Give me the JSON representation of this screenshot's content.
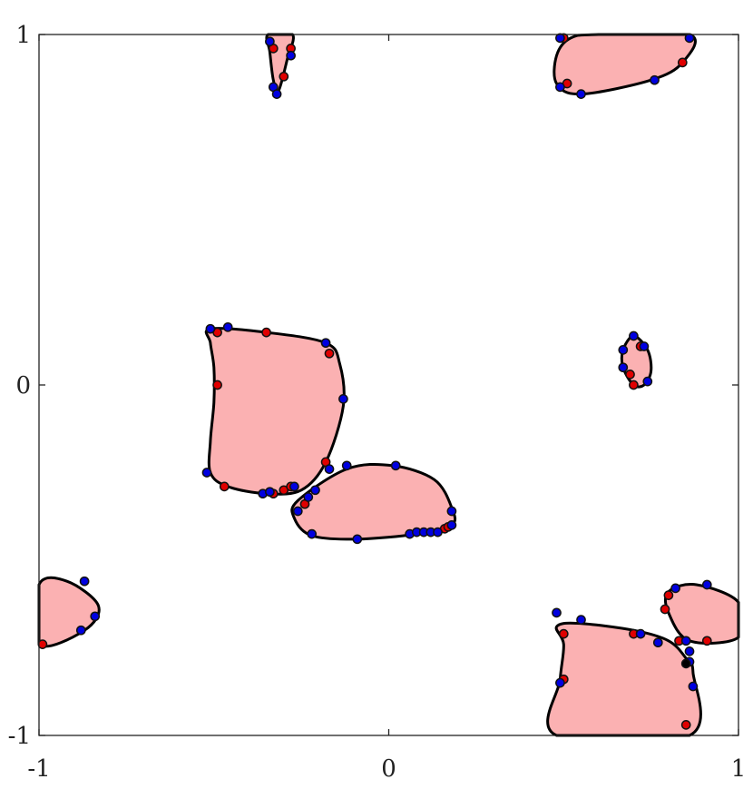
{
  "chart_data": {
    "type": "scatter",
    "title": "",
    "xlabel": "",
    "ylabel": "",
    "xlim": [
      -1,
      1
    ],
    "ylim": [
      -1,
      1
    ],
    "grid": false,
    "x_ticks": [
      -1,
      0,
      1
    ],
    "y_ticks": [
      -1,
      0,
      1
    ],
    "x_tick_labels": [
      "-1",
      "0",
      "1"
    ],
    "y_tick_labels": [
      "-1",
      "0",
      "1"
    ],
    "colors": {
      "fill": "#fbb1b2",
      "outline": "#000000",
      "red": "#e00000",
      "blue": "#0000e0"
    },
    "regions": [
      {
        "name": "top-center-small",
        "points": [
          [
            -0.345,
            1.0
          ],
          [
            -0.275,
            1.0
          ],
          [
            -0.29,
            0.93
          ],
          [
            -0.315,
            0.84
          ],
          [
            -0.33,
            0.87
          ],
          [
            -0.34,
            0.95
          ]
        ]
      },
      {
        "name": "top-right",
        "points": [
          [
            0.48,
            0.94
          ],
          [
            0.52,
            0.99
          ],
          [
            0.6,
            1.0
          ],
          [
            0.86,
            1.0
          ],
          [
            0.84,
            0.92
          ],
          [
            0.75,
            0.87
          ],
          [
            0.55,
            0.83
          ],
          [
            0.48,
            0.86
          ]
        ]
      },
      {
        "name": "center-left",
        "points": [
          [
            -0.51,
            0.16
          ],
          [
            -0.35,
            0.15
          ],
          [
            -0.18,
            0.12
          ],
          [
            -0.14,
            0.06
          ],
          [
            -0.13,
            -0.06
          ],
          [
            -0.18,
            -0.22
          ],
          [
            -0.25,
            -0.3
          ],
          [
            -0.35,
            -0.31
          ],
          [
            -0.46,
            -0.29
          ],
          [
            -0.51,
            -0.25
          ],
          [
            -0.51,
            -0.16
          ],
          [
            -0.5,
            -0.05
          ],
          [
            -0.5,
            0.05
          ],
          [
            -0.51,
            0.12
          ]
        ]
      },
      {
        "name": "center-bottom",
        "points": [
          [
            -0.26,
            -0.33
          ],
          [
            -0.12,
            -0.24
          ],
          [
            0.01,
            -0.23
          ],
          [
            0.13,
            -0.27
          ],
          [
            0.18,
            -0.35
          ],
          [
            0.18,
            -0.4
          ],
          [
            0.08,
            -0.425
          ],
          [
            -0.09,
            -0.44
          ],
          [
            -0.22,
            -0.43
          ],
          [
            -0.27,
            -0.38
          ]
        ]
      },
      {
        "name": "small-right",
        "points": [
          [
            0.67,
            0.1
          ],
          [
            0.7,
            0.14
          ],
          [
            0.74,
            0.1
          ],
          [
            0.75,
            0.04
          ],
          [
            0.73,
            0.0
          ],
          [
            0.7,
            0.0
          ],
          [
            0.67,
            0.05
          ]
        ]
      },
      {
        "name": "bottom-left",
        "points": [
          [
            -1,
            -0.57
          ],
          [
            -0.92,
            -0.56
          ],
          [
            -0.83,
            -0.63
          ],
          [
            -0.87,
            -0.7
          ],
          [
            -1,
            -0.74
          ]
        ]
      },
      {
        "name": "bottom-right-mid",
        "points": [
          [
            0.8,
            -0.59
          ],
          [
            0.88,
            -0.57
          ],
          [
            1,
            -0.62
          ],
          [
            1,
            -0.72
          ],
          [
            0.86,
            -0.73
          ],
          [
            0.8,
            -0.65
          ]
        ]
      },
      {
        "name": "bottom-right",
        "points": [
          [
            0.48,
            -0.69
          ],
          [
            0.54,
            -0.68
          ],
          [
            0.7,
            -0.7
          ],
          [
            0.8,
            -0.73
          ],
          [
            0.85,
            -0.78
          ],
          [
            0.87,
            -0.82
          ],
          [
            0.86,
            -1.0
          ],
          [
            0.48,
            -1.0
          ],
          [
            0.49,
            -0.84
          ],
          [
            0.5,
            -0.74
          ]
        ]
      }
    ],
    "series": [
      {
        "name": "",
        "color": "#e00000",
        "points": [
          [
            -0.33,
            0.96
          ],
          [
            -0.3,
            0.88
          ],
          [
            -0.28,
            0.96
          ],
          [
            0.5,
            0.99
          ],
          [
            0.51,
            0.86
          ],
          [
            0.84,
            0.92
          ],
          [
            -0.49,
            0.15
          ],
          [
            -0.35,
            0.15
          ],
          [
            -0.17,
            0.09
          ],
          [
            -0.49,
            0.0
          ],
          [
            -0.47,
            -0.29
          ],
          [
            -0.33,
            -0.31
          ],
          [
            -0.3,
            -0.3
          ],
          [
            -0.28,
            -0.29
          ],
          [
            -0.18,
            -0.22
          ],
          [
            -0.24,
            -0.34
          ],
          [
            0.16,
            -0.41
          ],
          [
            0.17,
            -0.405
          ],
          [
            0.69,
            0.03
          ],
          [
            0.7,
            0.0
          ],
          [
            0.72,
            0.11
          ],
          [
            -0.99,
            -0.74
          ],
          [
            0.8,
            -0.6
          ],
          [
            0.79,
            -0.64
          ],
          [
            0.91,
            -0.73
          ],
          [
            0.7,
            -0.71
          ],
          [
            0.83,
            -0.73
          ],
          [
            0.85,
            -0.97
          ],
          [
            0.5,
            -0.71
          ],
          [
            0.5,
            -0.84
          ]
        ]
      },
      {
        "name": "",
        "color": "#0000e0",
        "points": [
          [
            -0.34,
            0.98
          ],
          [
            -0.28,
            0.94
          ],
          [
            -0.33,
            0.85
          ],
          [
            -0.32,
            0.83
          ],
          [
            0.49,
            0.99
          ],
          [
            0.49,
            0.85
          ],
          [
            0.55,
            0.83
          ],
          [
            0.76,
            0.87
          ],
          [
            0.86,
            0.99
          ],
          [
            -0.51,
            0.16
          ],
          [
            -0.46,
            0.165
          ],
          [
            -0.18,
            0.12
          ],
          [
            -0.13,
            -0.04
          ],
          [
            -0.52,
            -0.25
          ],
          [
            -0.36,
            -0.31
          ],
          [
            -0.34,
            -0.305
          ],
          [
            -0.27,
            -0.29
          ],
          [
            -0.23,
            -0.32
          ],
          [
            -0.21,
            -0.3
          ],
          [
            -0.17,
            -0.24
          ],
          [
            -0.12,
            -0.23
          ],
          [
            0.02,
            -0.23
          ],
          [
            0.18,
            -0.36
          ],
          [
            0.18,
            -0.4
          ],
          [
            -0.26,
            -0.36
          ],
          [
            -0.22,
            -0.425
          ],
          [
            -0.09,
            -0.44
          ],
          [
            0.06,
            -0.425
          ],
          [
            0.08,
            -0.42
          ],
          [
            0.1,
            -0.42
          ],
          [
            0.12,
            -0.42
          ],
          [
            0.14,
            -0.42
          ],
          [
            0.67,
            0.1
          ],
          [
            0.7,
            0.14
          ],
          [
            0.73,
            0.11
          ],
          [
            0.67,
            0.05
          ],
          [
            0.74,
            0.01
          ],
          [
            -0.87,
            -0.56
          ],
          [
            -0.84,
            -0.66
          ],
          [
            -0.88,
            -0.7
          ],
          [
            0.82,
            -0.58
          ],
          [
            0.91,
            -0.57
          ],
          [
            0.72,
            -0.71
          ],
          [
            0.77,
            -0.735
          ],
          [
            0.85,
            -0.73
          ],
          [
            0.86,
            -0.76
          ],
          [
            0.86,
            -0.79
          ],
          [
            0.87,
            -0.86
          ],
          [
            0.48,
            -0.65
          ],
          [
            0.55,
            -0.67
          ],
          [
            0.49,
            -0.85
          ]
        ]
      },
      {
        "name": "",
        "color": "#000000",
        "points": [
          [
            0.85,
            -0.795
          ]
        ]
      }
    ]
  }
}
